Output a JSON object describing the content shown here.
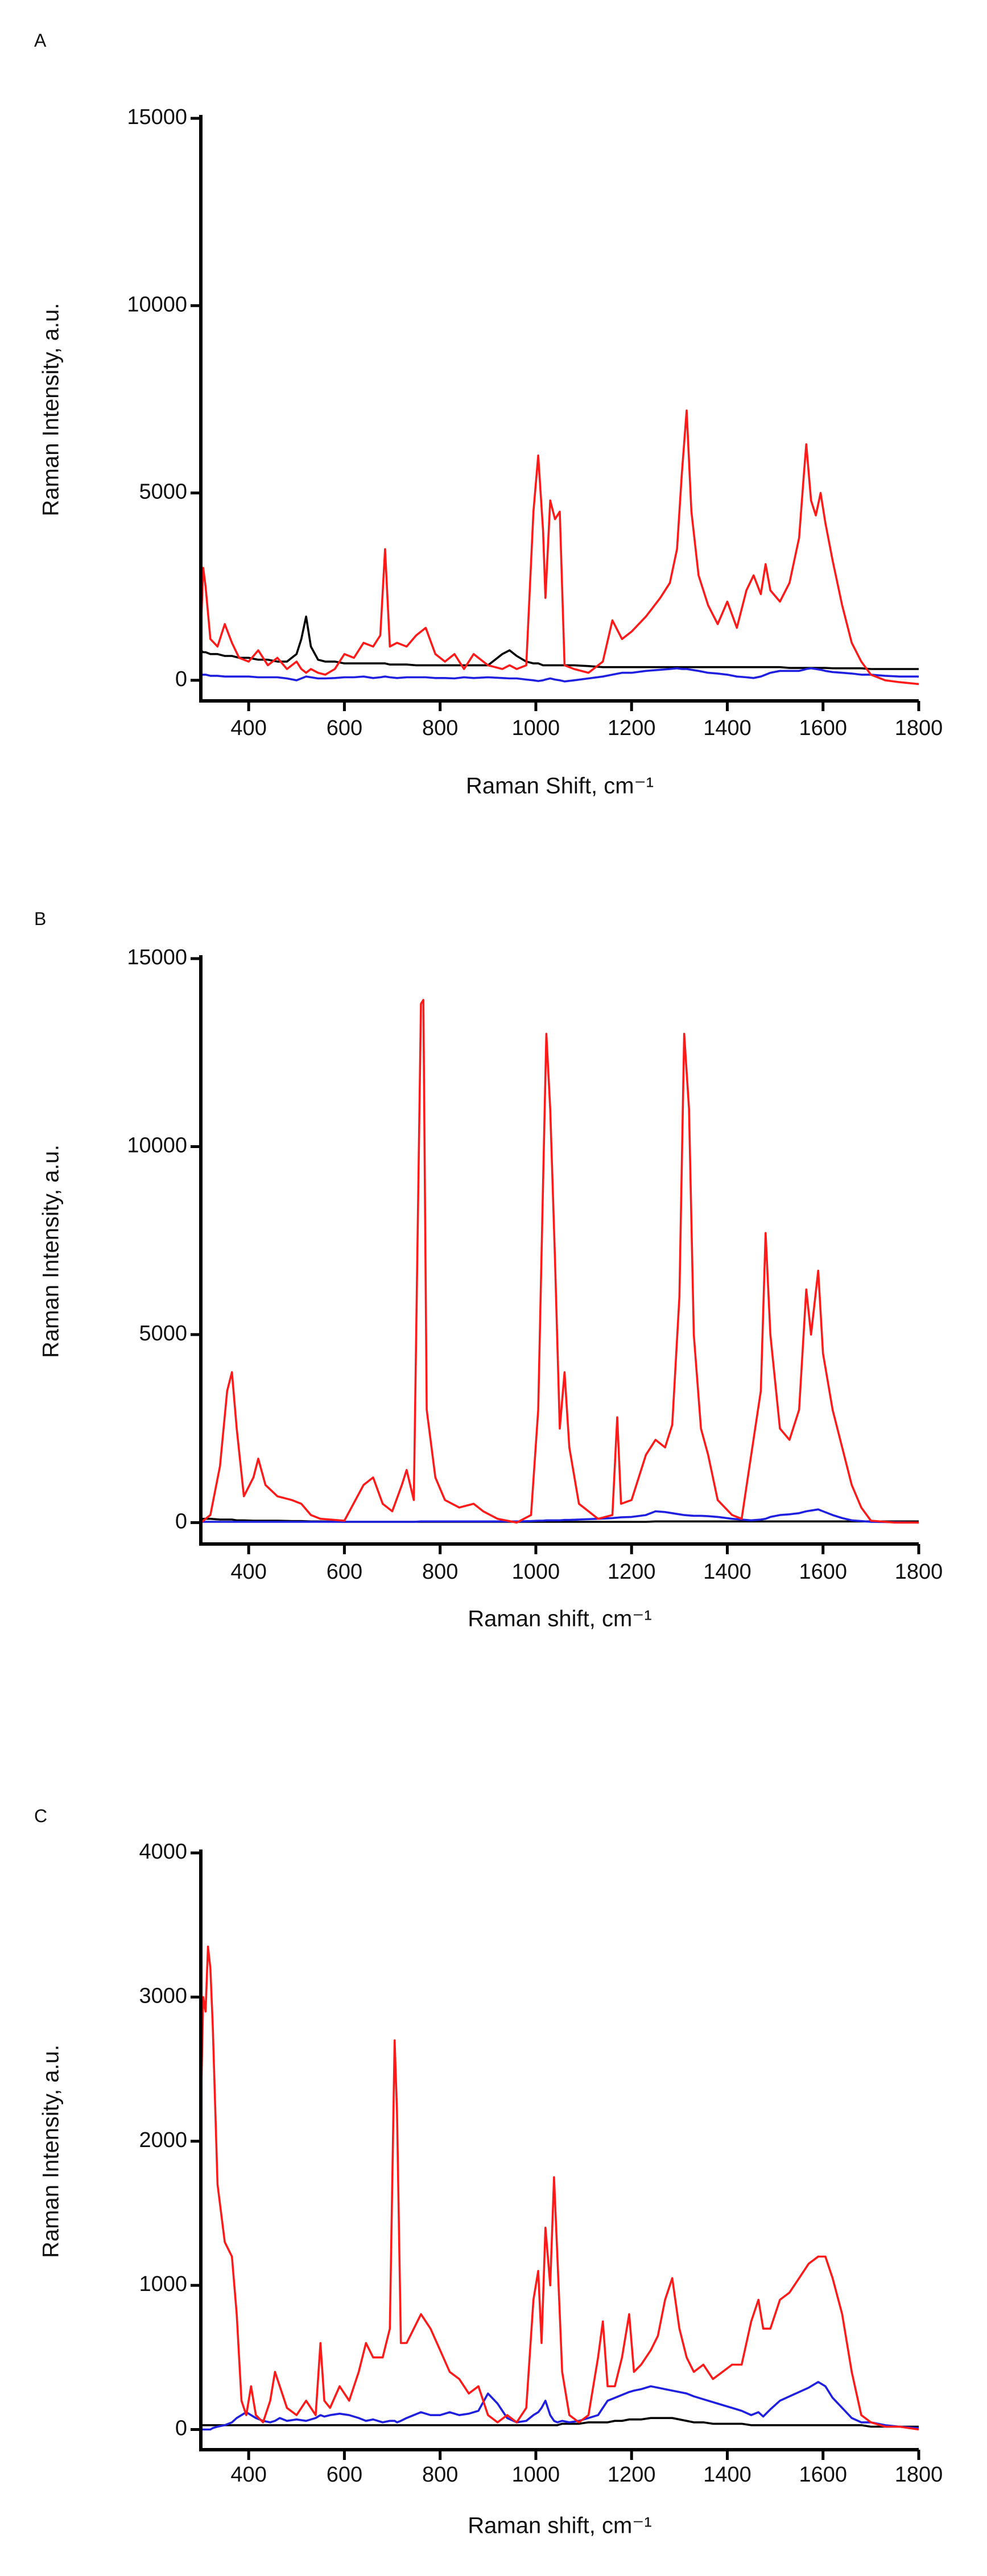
{
  "chart_data": [
    {
      "type": "line",
      "panel_label": "A",
      "y_label": "Raman Intensity, a.u.",
      "x_label": "Raman Shift, cm⁻¹",
      "xlim": [
        300,
        1800
      ],
      "ylim": [
        -550,
        15000
      ],
      "xticks": [
        400,
        600,
        800,
        1000,
        1200,
        1400,
        1600,
        1800
      ],
      "yticks": [
        0,
        5000,
        10000,
        15000
      ],
      "x": [
        300,
        305,
        310,
        320,
        335,
        350,
        365,
        380,
        400,
        420,
        440,
        460,
        480,
        500,
        510,
        520,
        530,
        545,
        560,
        580,
        600,
        620,
        640,
        660,
        675,
        685,
        695,
        710,
        730,
        750,
        770,
        790,
        810,
        830,
        850,
        870,
        900,
        930,
        945,
        960,
        980,
        995,
        1005,
        1015,
        1020,
        1030,
        1040,
        1050,
        1060,
        1080,
        1110,
        1140,
        1160,
        1180,
        1200,
        1230,
        1260,
        1280,
        1295,
        1305,
        1315,
        1325,
        1340,
        1360,
        1380,
        1400,
        1420,
        1440,
        1455,
        1470,
        1480,
        1490,
        1510,
        1530,
        1550,
        1560,
        1565,
        1575,
        1585,
        1595,
        1605,
        1620,
        1640,
        1660,
        1680,
        1700,
        1730,
        1760,
        1800
      ],
      "series": [
        {
          "color": "#000000",
          "values": [
            800,
            750,
            750,
            700,
            700,
            650,
            650,
            600,
            600,
            550,
            550,
            500,
            500,
            700,
            1100,
            1700,
            900,
            550,
            500,
            500,
            450,
            450,
            450,
            450,
            450,
            450,
            420,
            420,
            420,
            400,
            400,
            400,
            400,
            400,
            400,
            400,
            400,
            700,
            800,
            650,
            500,
            450,
            450,
            400,
            400,
            400,
            400,
            400,
            400,
            400,
            380,
            350,
            350,
            350,
            350,
            350,
            350,
            350,
            350,
            350,
            350,
            350,
            350,
            350,
            350,
            350,
            350,
            350,
            350,
            350,
            350,
            350,
            350,
            330,
            330,
            330,
            330,
            330,
            330,
            330,
            330,
            320,
            320,
            320,
            320,
            300,
            300,
            300,
            300
          ]
        },
        {
          "color": "#1f1fe0",
          "values": [
            150,
            150,
            150,
            120,
            120,
            100,
            100,
            100,
            100,
            80,
            80,
            80,
            50,
            0,
            50,
            100,
            80,
            50,
            50,
            60,
            80,
            80,
            100,
            60,
            80,
            100,
            80,
            60,
            80,
            80,
            80,
            60,
            60,
            50,
            80,
            60,
            80,
            60,
            50,
            50,
            20,
            0,
            -20,
            0,
            20,
            50,
            20,
            0,
            -30,
            0,
            50,
            100,
            150,
            200,
            200,
            250,
            280,
            300,
            320,
            300,
            300,
            280,
            250,
            200,
            180,
            150,
            100,
            80,
            60,
            100,
            150,
            200,
            250,
            250,
            250,
            280,
            300,
            320,
            300,
            280,
            250,
            220,
            200,
            180,
            150,
            150,
            120,
            100,
            100
          ]
        },
        {
          "color": "#ff1a1a",
          "values": [
            1300,
            3000,
            2500,
            1100,
            900,
            1500,
            1000,
            600,
            500,
            800,
            400,
            600,
            300,
            500,
            300,
            200,
            300,
            200,
            150,
            300,
            700,
            600,
            1000,
            900,
            1200,
            3500,
            900,
            1000,
            900,
            1200,
            1400,
            700,
            500,
            700,
            300,
            700,
            400,
            300,
            400,
            300,
            400,
            4500,
            6000,
            4000,
            2200,
            4800,
            4300,
            4500,
            400,
            300,
            200,
            500,
            1600,
            1100,
            1300,
            1700,
            2200,
            2600,
            3500,
            5500,
            7200,
            4500,
            2800,
            2000,
            1500,
            2100,
            1400,
            2400,
            2800,
            2300,
            3100,
            2400,
            2100,
            2600,
            3800,
            5500,
            6300,
            4800,
            4400,
            5000,
            4200,
            3200,
            2000,
            1000,
            500,
            150,
            0,
            -50,
            -100
          ]
        }
      ]
    },
    {
      "type": "line",
      "panel_label": "B",
      "y_label": "Raman Intensity, a.u.",
      "x_label": "Raman shift, cm⁻¹",
      "xlim": [
        300,
        1800
      ],
      "ylim": [
        -570,
        15000
      ],
      "xticks": [
        400,
        600,
        800,
        1000,
        1200,
        1400,
        1600,
        1800
      ],
      "yticks": [
        0,
        5000,
        10000,
        15000
      ],
      "x": [
        300,
        320,
        340,
        355,
        365,
        375,
        390,
        410,
        420,
        435,
        460,
        490,
        510,
        530,
        550,
        600,
        640,
        660,
        680,
        700,
        720,
        730,
        745,
        760,
        765,
        772,
        790,
        810,
        840,
        870,
        890,
        920,
        960,
        990,
        1005,
        1015,
        1022,
        1030,
        1040,
        1050,
        1060,
        1070,
        1090,
        1130,
        1160,
        1170,
        1178,
        1200,
        1230,
        1250,
        1270,
        1285,
        1300,
        1310,
        1320,
        1330,
        1345,
        1360,
        1380,
        1410,
        1430,
        1450,
        1470,
        1480,
        1490,
        1510,
        1530,
        1550,
        1565,
        1575,
        1590,
        1600,
        1620,
        1640,
        1660,
        1680,
        1700,
        1750,
        1800
      ],
      "series": [
        {
          "color": "#000000",
          "values": [
            100,
            100,
            80,
            80,
            80,
            60,
            60,
            50,
            50,
            50,
            50,
            40,
            40,
            30,
            30,
            20,
            20,
            20,
            20,
            20,
            20,
            20,
            20,
            20,
            20,
            20,
            20,
            20,
            20,
            20,
            20,
            20,
            20,
            20,
            20,
            20,
            20,
            20,
            20,
            20,
            20,
            20,
            20,
            20,
            20,
            20,
            20,
            20,
            20,
            30,
            30,
            30,
            30,
            30,
            30,
            30,
            30,
            30,
            30,
            30,
            30,
            30,
            30,
            30,
            30,
            30,
            30,
            30,
            30,
            30,
            30,
            30,
            30,
            30,
            30,
            30,
            30,
            30,
            30
          ]
        },
        {
          "color": "#1f1fe0",
          "values": [
            20,
            20,
            20,
            20,
            20,
            20,
            20,
            20,
            20,
            20,
            20,
            20,
            20,
            20,
            20,
            20,
            20,
            20,
            20,
            20,
            20,
            20,
            20,
            30,
            30,
            30,
            30,
            30,
            30,
            30,
            30,
            30,
            30,
            40,
            50,
            50,
            60,
            60,
            60,
            60,
            70,
            70,
            80,
            100,
            120,
            130,
            140,
            150,
            200,
            300,
            280,
            250,
            220,
            200,
            190,
            180,
            180,
            170,
            150,
            100,
            80,
            60,
            80,
            100,
            150,
            200,
            220,
            250,
            300,
            320,
            350,
            300,
            200,
            120,
            60,
            40,
            20,
            10,
            0
          ]
        },
        {
          "color": "#ff1a1a",
          "values": [
            0,
            200,
            1500,
            3500,
            4000,
            2500,
            700,
            1200,
            1700,
            1000,
            700,
            600,
            500,
            200,
            100,
            50,
            1000,
            1200,
            500,
            300,
            1000,
            1400,
            600,
            13800,
            13900,
            3000,
            1200,
            600,
            400,
            500,
            300,
            100,
            0,
            200,
            3000,
            9000,
            13000,
            11000,
            7000,
            2500,
            4000,
            2000,
            500,
            100,
            200,
            2800,
            500,
            600,
            1800,
            2200,
            2000,
            2600,
            6000,
            13000,
            11000,
            5000,
            2500,
            1800,
            600,
            200,
            100,
            1800,
            3500,
            7700,
            5000,
            2500,
            2200,
            3000,
            6200,
            5000,
            6700,
            4500,
            3000,
            2000,
            1000,
            400,
            50,
            0,
            0
          ]
        }
      ]
    },
    {
      "type": "line",
      "panel_label": "C",
      "y_label": "Raman Intensity, a.u.",
      "x_label": "Raman shift, cm⁻¹",
      "xlim": [
        300,
        1800
      ],
      "ylim": [
        -140,
        4000
      ],
      "xticks": [
        400,
        600,
        800,
        1000,
        1200,
        1400,
        1600,
        1800
      ],
      "yticks": [
        0,
        1000,
        2000,
        3000,
        4000
      ],
      "x": [
        300,
        305,
        310,
        315,
        320,
        325,
        335,
        350,
        365,
        375,
        385,
        395,
        405,
        415,
        430,
        445,
        455,
        465,
        480,
        500,
        520,
        540,
        550,
        558,
        570,
        590,
        610,
        630,
        645,
        660,
        680,
        695,
        705,
        710,
        718,
        730,
        745,
        760,
        780,
        800,
        820,
        840,
        860,
        880,
        900,
        920,
        940,
        960,
        980,
        995,
        1005,
        1012,
        1020,
        1030,
        1038,
        1045,
        1055,
        1070,
        1090,
        1110,
        1130,
        1140,
        1150,
        1165,
        1180,
        1195,
        1205,
        1220,
        1240,
        1255,
        1270,
        1285,
        1300,
        1315,
        1330,
        1350,
        1370,
        1390,
        1410,
        1430,
        1450,
        1465,
        1475,
        1490,
        1510,
        1530,
        1550,
        1570,
        1590,
        1605,
        1620,
        1640,
        1660,
        1680,
        1700,
        1730,
        1760,
        1800
      ],
      "series": [
        {
          "color": "#000000",
          "values": [
            30,
            30,
            30,
            30,
            30,
            30,
            30,
            30,
            30,
            30,
            30,
            30,
            30,
            30,
            30,
            30,
            30,
            30,
            30,
            30,
            30,
            30,
            30,
            30,
            30,
            30,
            30,
            30,
            30,
            30,
            30,
            30,
            30,
            30,
            30,
            30,
            30,
            30,
            30,
            30,
            30,
            30,
            30,
            30,
            30,
            30,
            30,
            30,
            30,
            30,
            30,
            30,
            30,
            30,
            30,
            30,
            40,
            40,
            40,
            50,
            50,
            50,
            50,
            60,
            60,
            70,
            70,
            70,
            80,
            80,
            80,
            80,
            70,
            60,
            50,
            50,
            40,
            40,
            40,
            40,
            30,
            30,
            30,
            30,
            30,
            30,
            30,
            30,
            30,
            30,
            30,
            30,
            30,
            30,
            20,
            20,
            20,
            20
          ]
        },
        {
          "color": "#1f1fe0",
          "values": [
            0,
            0,
            0,
            0,
            0,
            10,
            20,
            30,
            50,
            80,
            100,
            120,
            100,
            80,
            60,
            50,
            60,
            80,
            60,
            70,
            60,
            80,
            100,
            90,
            100,
            110,
            100,
            80,
            60,
            70,
            50,
            60,
            60,
            50,
            60,
            80,
            100,
            120,
            100,
            100,
            120,
            100,
            110,
            130,
            250,
            180,
            80,
            50,
            60,
            100,
            120,
            150,
            200,
            100,
            60,
            50,
            60,
            50,
            60,
            80,
            100,
            150,
            200,
            220,
            240,
            260,
            270,
            280,
            300,
            290,
            280,
            270,
            260,
            250,
            230,
            210,
            190,
            170,
            150,
            130,
            100,
            120,
            90,
            140,
            200,
            230,
            260,
            290,
            330,
            300,
            220,
            150,
            80,
            50,
            50,
            30,
            20,
            10
          ]
        },
        {
          "color": "#ff1a1a",
          "values": [
            2200,
            3000,
            2900,
            3350,
            3200,
            2800,
            1700,
            1300,
            1200,
            800,
            200,
            100,
            300,
            100,
            50,
            200,
            400,
            300,
            150,
            100,
            200,
            100,
            600,
            200,
            150,
            300,
            200,
            400,
            600,
            500,
            500,
            700,
            2700,
            2200,
            600,
            600,
            700,
            800,
            700,
            550,
            400,
            350,
            250,
            300,
            100,
            50,
            100,
            50,
            150,
            900,
            1100,
            600,
            1400,
            1000,
            1750,
            1200,
            400,
            100,
            50,
            100,
            500,
            750,
            300,
            300,
            500,
            800,
            400,
            450,
            550,
            650,
            900,
            1050,
            700,
            500,
            400,
            450,
            350,
            400,
            450,
            450,
            750,
            900,
            700,
            700,
            900,
            950,
            1050,
            1150,
            1200,
            1200,
            1050,
            800,
            400,
            100,
            50,
            20,
            20,
            0
          ]
        }
      ]
    }
  ]
}
